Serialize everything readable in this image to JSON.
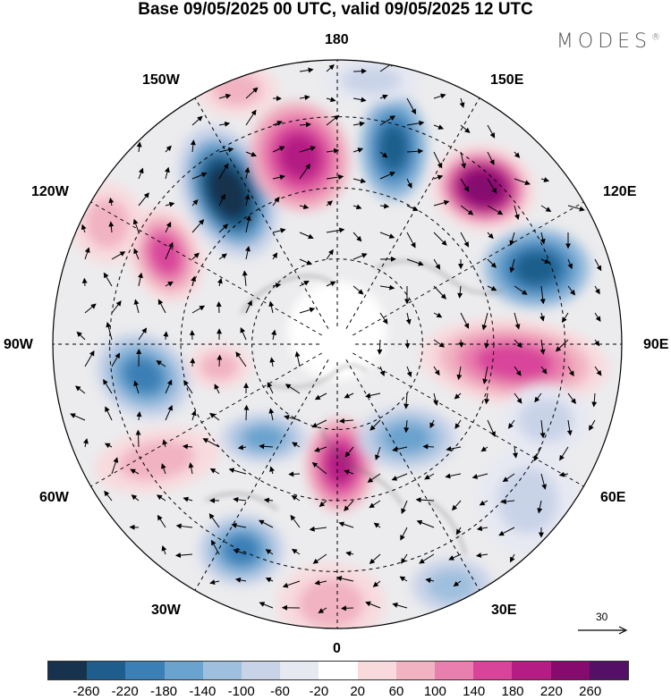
{
  "title": "Base 09/05/2025 00 UTC, valid 09/05/2025 12 UTC",
  "brand": "MODES",
  "brand_mark": "®",
  "map": {
    "projection": "north-polar-stereographic",
    "longitude_labels": {
      "top": "180",
      "top_left": "150W",
      "top_right": "150E",
      "upper_left": "120W",
      "upper_right": "120E",
      "left": "90W",
      "right": "90E",
      "lower_left": "60W",
      "lower_right": "60E",
      "bottom_left": "30W",
      "bottom_right": "30E",
      "bottom": "0"
    },
    "reference_vector": "30"
  },
  "colorbar": {
    "colors": [
      "#17324d",
      "#1f5e8c",
      "#3a7fb6",
      "#6aa3ce",
      "#9fbfde",
      "#c9d3e8",
      "#e6e8f2",
      "#ffffff",
      "#f8dadd",
      "#f1b2c1",
      "#e97fae",
      "#d8449a",
      "#b41e84",
      "#860b6f",
      "#531066"
    ],
    "tick_labels": [
      "-260",
      "-220",
      "-180",
      "-140",
      "-100",
      "-60",
      "-20",
      "20",
      "60",
      "100",
      "140",
      "180",
      "220",
      "260"
    ]
  }
}
